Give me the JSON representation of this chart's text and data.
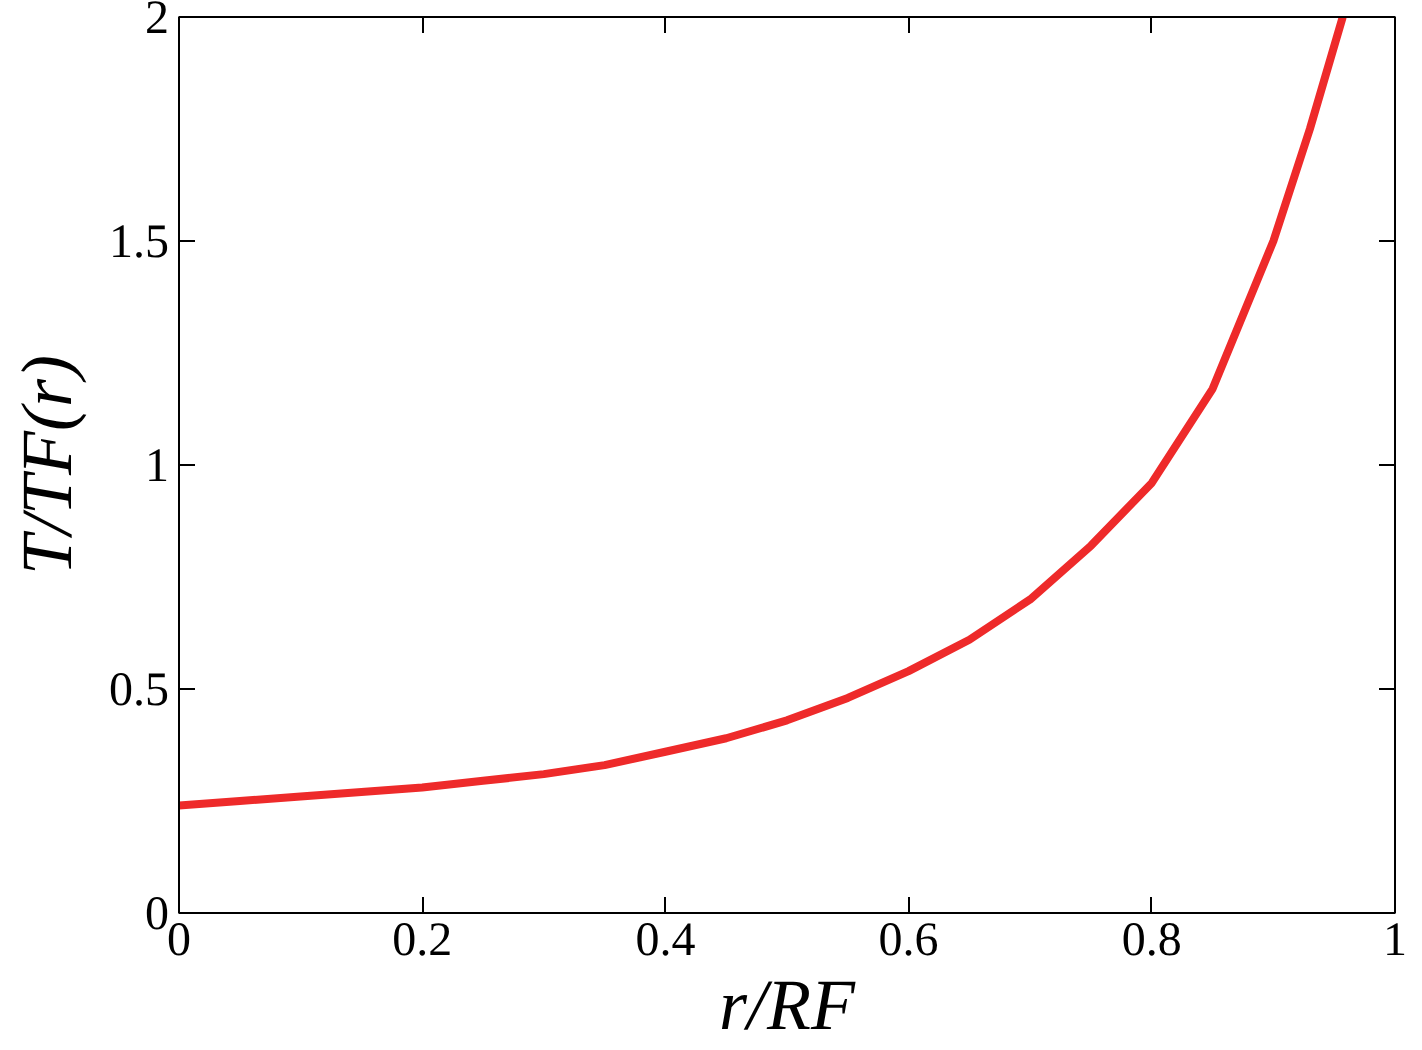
{
  "chart_data": {
    "type": "line",
    "xlabel": "r/RF",
    "ylabel": "T/TF(r)",
    "x": [
      0,
      0.05,
      0.1,
      0.15,
      0.2,
      0.25,
      0.3,
      0.35,
      0.4,
      0.45,
      0.5,
      0.55,
      0.6,
      0.65,
      0.7,
      0.75,
      0.8,
      0.85,
      0.9,
      0.93,
      0.957
    ],
    "series": [
      {
        "color": "#ee2a2a",
        "values": [
          0.24,
          0.25,
          0.26,
          0.27,
          0.28,
          0.295,
          0.31,
          0.33,
          0.36,
          0.39,
          0.43,
          0.48,
          0.54,
          0.61,
          0.7,
          0.82,
          0.96,
          1.17,
          1.5,
          1.75,
          2.0
        ]
      }
    ],
    "xlim": [
      0,
      1
    ],
    "ylim": [
      0,
      2
    ],
    "xticks": [
      0,
      0.2,
      0.4,
      0.6,
      0.8,
      1
    ],
    "yticks": [
      0,
      0.5,
      1,
      1.5,
      2
    ],
    "grid": false,
    "marker": "none",
    "line_style": "solid"
  }
}
